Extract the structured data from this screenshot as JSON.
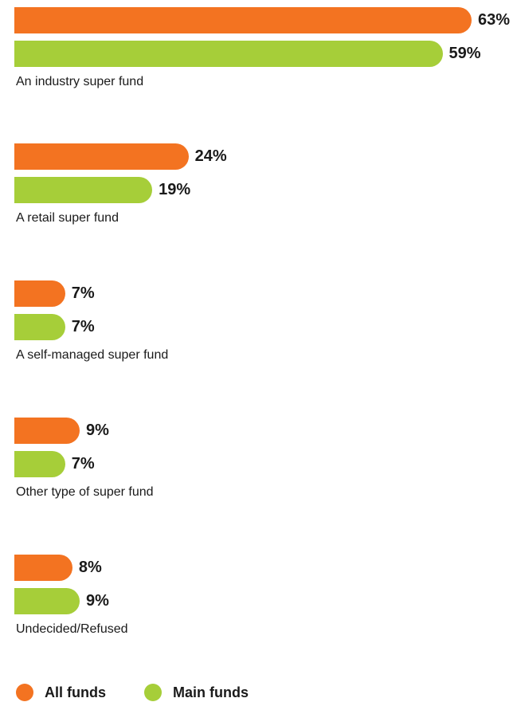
{
  "colors": {
    "all_funds": "#f37321",
    "main_funds": "#a6ce39"
  },
  "legend": [
    {
      "label": "All funds",
      "color": "#f37321"
    },
    {
      "label": "Main funds",
      "color": "#a6ce39"
    }
  ],
  "chart_data": {
    "type": "bar",
    "orientation": "horizontal",
    "categories": [
      "An industry super fund",
      "A retail super fund",
      "A self-managed super fund",
      "Other type of super fund",
      "Undecided/Refused"
    ],
    "series": [
      {
        "name": "All funds",
        "values": [
          63,
          24,
          7,
          9,
          8
        ],
        "labels": [
          "63%",
          "24%",
          "7%",
          "9%",
          "8%"
        ]
      },
      {
        "name": "Main funds",
        "values": [
          59,
          19,
          7,
          7,
          9
        ],
        "labels": [
          "59%",
          "19%",
          "7%",
          "7%",
          "9%"
        ]
      }
    ],
    "xlim": [
      0,
      63
    ],
    "grid": false,
    "legend_position": "bottom-left"
  }
}
